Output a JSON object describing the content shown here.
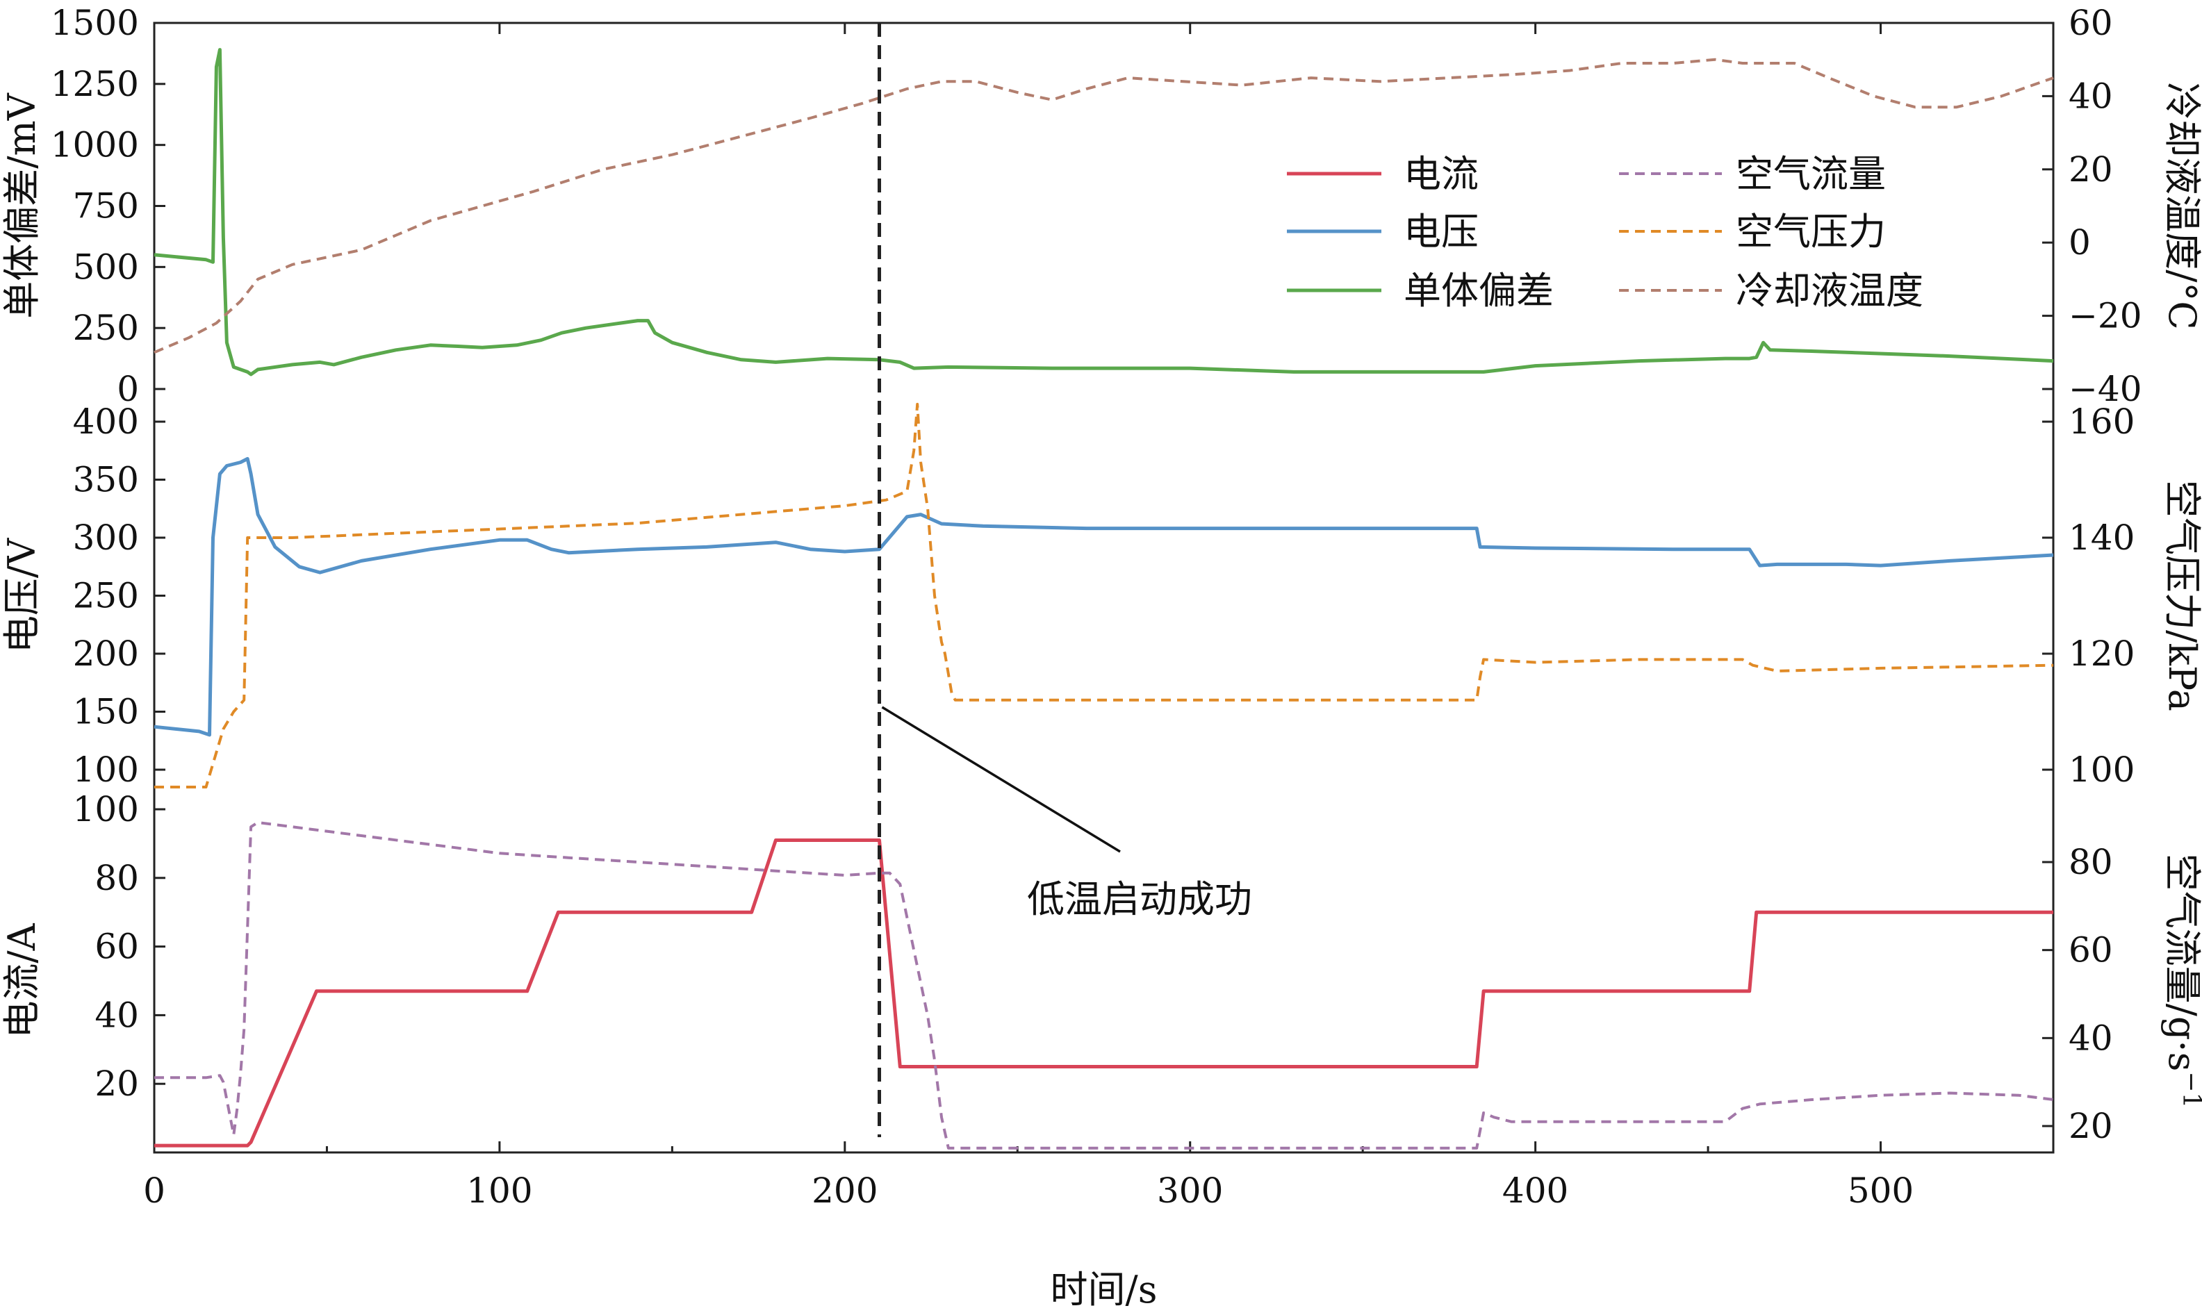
{
  "chart_data": {
    "type": "line",
    "x_axis": {
      "label": "时间/s",
      "range": [
        0,
        550
      ],
      "ticks": [
        0,
        100,
        200,
        300,
        400,
        500
      ]
    },
    "legend": {
      "placement": "top-right of top panel",
      "entries": [
        {
          "series": "current",
          "label": "电流"
        },
        {
          "series": "voltage",
          "label": "电压"
        },
        {
          "series": "cell_dev",
          "label": "单体偏差"
        },
        {
          "series": "air_flow",
          "label": "空气流量"
        },
        {
          "series": "air_pressure",
          "label": "空气压力"
        },
        {
          "series": "coolant_temp",
          "label": "冷却液温度"
        }
      ]
    },
    "annotation": {
      "text": "低温启动成功",
      "x": 210
    },
    "panels": [
      {
        "id": "top",
        "left_axis": {
          "label": "单体偏差/mV",
          "range": [
            0,
            1500
          ],
          "ticks": [
            0,
            250,
            500,
            750,
            1000,
            1250,
            1500
          ]
        },
        "right_axis": {
          "label": "冷却液温度/°C",
          "range": [
            -40,
            60
          ],
          "ticks": [
            -40,
            -20,
            0,
            20,
            40,
            60
          ]
        }
      },
      {
        "id": "mid",
        "left_axis": {
          "label": "电压/V",
          "range": [
            100,
            400
          ],
          "ticks": [
            100,
            150,
            200,
            250,
            300,
            350,
            400
          ]
        },
        "right_axis": {
          "label": "空气压力/kPa",
          "range": [
            100,
            160
          ],
          "ticks": [
            100,
            120,
            140,
            160
          ]
        }
      },
      {
        "id": "bot",
        "left_axis": {
          "label": "电流/A",
          "range": [
            0,
            100
          ],
          "ticks": [
            20,
            40,
            60,
            80,
            100
          ]
        },
        "right_axis": {
          "label": "空气流量/g·s",
          "label_superscript": "−1",
          "range": [
            14,
            92
          ],
          "ticks": [
            20,
            40,
            60,
            80
          ]
        }
      }
    ],
    "series": [
      {
        "id": "cell_dev",
        "panel": "top",
        "axis": "left",
        "color": "#5aa84c",
        "dash": "solid",
        "points": [
          [
            0,
            550
          ],
          [
            15,
            530
          ],
          [
            17,
            520
          ],
          [
            18,
            1320
          ],
          [
            19,
            1390
          ],
          [
            20,
            620
          ],
          [
            21,
            190
          ],
          [
            23,
            90
          ],
          [
            27,
            70
          ],
          [
            28,
            60
          ],
          [
            30,
            80
          ],
          [
            40,
            100
          ],
          [
            48,
            110
          ],
          [
            52,
            100
          ],
          [
            60,
            130
          ],
          [
            70,
            160
          ],
          [
            80,
            180
          ],
          [
            88,
            175
          ],
          [
            95,
            170
          ],
          [
            105,
            180
          ],
          [
            112,
            200
          ],
          [
            118,
            230
          ],
          [
            125,
            250
          ],
          [
            135,
            270
          ],
          [
            140,
            280
          ],
          [
            143,
            280
          ],
          [
            145,
            230
          ],
          [
            150,
            190
          ],
          [
            160,
            150
          ],
          [
            170,
            120
          ],
          [
            180,
            110
          ],
          [
            195,
            125
          ],
          [
            210,
            120
          ],
          [
            216,
            110
          ],
          [
            220,
            85
          ],
          [
            230,
            90
          ],
          [
            260,
            85
          ],
          [
            300,
            85
          ],
          [
            330,
            70
          ],
          [
            360,
            70
          ],
          [
            385,
            70
          ],
          [
            400,
            95
          ],
          [
            430,
            115
          ],
          [
            455,
            125
          ],
          [
            462,
            125
          ],
          [
            464,
            130
          ],
          [
            466,
            190
          ],
          [
            468,
            160
          ],
          [
            480,
            155
          ],
          [
            520,
            135
          ],
          [
            550,
            115
          ]
        ]
      },
      {
        "id": "coolant_temp",
        "panel": "top",
        "axis": "right",
        "color": "#b27e6e",
        "dash": "dashed",
        "points": [
          [
            0,
            -30
          ],
          [
            10,
            -26
          ],
          [
            18,
            -22
          ],
          [
            25,
            -16
          ],
          [
            30,
            -10
          ],
          [
            40,
            -6
          ],
          [
            50,
            -4
          ],
          [
            60,
            -2
          ],
          [
            70,
            2
          ],
          [
            80,
            6
          ],
          [
            95,
            10
          ],
          [
            110,
            14
          ],
          [
            130,
            20
          ],
          [
            150,
            24
          ],
          [
            170,
            29
          ],
          [
            190,
            34
          ],
          [
            205,
            38
          ],
          [
            218,
            42
          ],
          [
            228,
            44
          ],
          [
            238,
            44
          ],
          [
            250,
            41
          ],
          [
            260,
            39
          ],
          [
            270,
            42
          ],
          [
            282,
            45
          ],
          [
            298,
            44
          ],
          [
            315,
            43
          ],
          [
            335,
            45
          ],
          [
            355,
            44
          ],
          [
            375,
            45
          ],
          [
            395,
            46
          ],
          [
            410,
            47
          ],
          [
            425,
            49
          ],
          [
            440,
            49
          ],
          [
            452,
            50
          ],
          [
            460,
            49
          ],
          [
            475,
            49
          ],
          [
            485,
            45
          ],
          [
            498,
            40
          ],
          [
            510,
            37
          ],
          [
            522,
            37
          ],
          [
            535,
            40
          ],
          [
            550,
            45
          ]
        ]
      },
      {
        "id": "voltage",
        "panel": "mid",
        "axis": "left",
        "color": "#5592c8",
        "dash": "solid",
        "points": [
          [
            0,
            137
          ],
          [
            13,
            133
          ],
          [
            16,
            130
          ],
          [
            17,
            300
          ],
          [
            19,
            355
          ],
          [
            21,
            362
          ],
          [
            25,
            365
          ],
          [
            27,
            368
          ],
          [
            28,
            355
          ],
          [
            30,
            320
          ],
          [
            35,
            292
          ],
          [
            42,
            275
          ],
          [
            48,
            270
          ],
          [
            60,
            280
          ],
          [
            80,
            290
          ],
          [
            100,
            298
          ],
          [
            108,
            298
          ],
          [
            115,
            290
          ],
          [
            120,
            287
          ],
          [
            140,
            290
          ],
          [
            160,
            292
          ],
          [
            180,
            296
          ],
          [
            190,
            290
          ],
          [
            200,
            288
          ],
          [
            210,
            290
          ],
          [
            218,
            318
          ],
          [
            222,
            320
          ],
          [
            228,
            312
          ],
          [
            240,
            310
          ],
          [
            270,
            308
          ],
          [
            320,
            308
          ],
          [
            370,
            308
          ],
          [
            383,
            308
          ],
          [
            384,
            292
          ],
          [
            400,
            291
          ],
          [
            440,
            290
          ],
          [
            462,
            290
          ],
          [
            465,
            276
          ],
          [
            470,
            277
          ],
          [
            490,
            277
          ],
          [
            500,
            276
          ],
          [
            520,
            280
          ],
          [
            550,
            285
          ]
        ]
      },
      {
        "id": "air_pressure",
        "panel": "mid",
        "axis": "right",
        "color": "#e08a26",
        "dash": "dashed",
        "points": [
          [
            0,
            97
          ],
          [
            15,
            97
          ],
          [
            18,
            103
          ],
          [
            20,
            107
          ],
          [
            23,
            110
          ],
          [
            26,
            112
          ],
          [
            27,
            140
          ],
          [
            40,
            140
          ],
          [
            60,
            140.5
          ],
          [
            80,
            141
          ],
          [
            100,
            141.5
          ],
          [
            120,
            142
          ],
          [
            140,
            142.5
          ],
          [
            160,
            143.5
          ],
          [
            180,
            144.5
          ],
          [
            200,
            145.5
          ],
          [
            212,
            146.5
          ],
          [
            218,
            148
          ],
          [
            220,
            155
          ],
          [
            221,
            163
          ],
          [
            222,
            153
          ],
          [
            224,
            145
          ],
          [
            226,
            130
          ],
          [
            228,
            122
          ],
          [
            229,
            120
          ],
          [
            231,
            113
          ],
          [
            232,
            112
          ],
          [
            260,
            112
          ],
          [
            300,
            112
          ],
          [
            340,
            112
          ],
          [
            383,
            112
          ],
          [
            384,
            116
          ],
          [
            385,
            119
          ],
          [
            400,
            118.5
          ],
          [
            430,
            119
          ],
          [
            460,
            119
          ],
          [
            463,
            118
          ],
          [
            470,
            117
          ],
          [
            500,
            117.5
          ],
          [
            550,
            118
          ]
        ]
      },
      {
        "id": "current",
        "panel": "bot",
        "axis": "left",
        "color": "#d84457",
        "dash": "solid",
        "points": [
          [
            0,
            2
          ],
          [
            27,
            2
          ],
          [
            28,
            3
          ],
          [
            47,
            47
          ],
          [
            108,
            47
          ],
          [
            117,
            70
          ],
          [
            173,
            70
          ],
          [
            180,
            91
          ],
          [
            210,
            91
          ],
          [
            216,
            25
          ],
          [
            240,
            25
          ],
          [
            300,
            25
          ],
          [
            383,
            25
          ],
          [
            385,
            47
          ],
          [
            410,
            47
          ],
          [
            462,
            47
          ],
          [
            464,
            70
          ],
          [
            500,
            70
          ],
          [
            550,
            70
          ]
        ]
      },
      {
        "id": "air_flow",
        "panel": "bot",
        "axis": "right",
        "color": "#a277a8",
        "dash": "dashed",
        "points": [
          [
            0,
            31
          ],
          [
            15,
            31
          ],
          [
            19,
            31.5
          ],
          [
            20,
            30
          ],
          [
            21,
            26
          ],
          [
            22,
            22
          ],
          [
            23,
            18
          ],
          [
            24,
            24
          ],
          [
            25,
            32
          ],
          [
            26,
            42
          ],
          [
            27,
            65
          ],
          [
            28,
            88
          ],
          [
            30,
            89
          ],
          [
            40,
            88
          ],
          [
            60,
            86
          ],
          [
            80,
            84
          ],
          [
            100,
            82
          ],
          [
            120,
            81
          ],
          [
            140,
            80
          ],
          [
            160,
            79
          ],
          [
            180,
            78
          ],
          [
            200,
            77
          ],
          [
            210,
            77.5
          ],
          [
            213,
            77.5
          ],
          [
            216,
            75
          ],
          [
            220,
            60
          ],
          [
            224,
            45
          ],
          [
            226,
            35
          ],
          [
            228,
            22
          ],
          [
            230,
            15
          ],
          [
            260,
            15
          ],
          [
            300,
            15
          ],
          [
            383,
            15
          ],
          [
            385,
            23
          ],
          [
            388,
            22
          ],
          [
            393,
            21
          ],
          [
            400,
            21
          ],
          [
            440,
            21
          ],
          [
            455,
            21
          ],
          [
            460,
            24
          ],
          [
            465,
            25
          ],
          [
            480,
            26
          ],
          [
            500,
            27
          ],
          [
            520,
            27.5
          ],
          [
            540,
            27
          ],
          [
            550,
            26
          ]
        ]
      }
    ]
  }
}
